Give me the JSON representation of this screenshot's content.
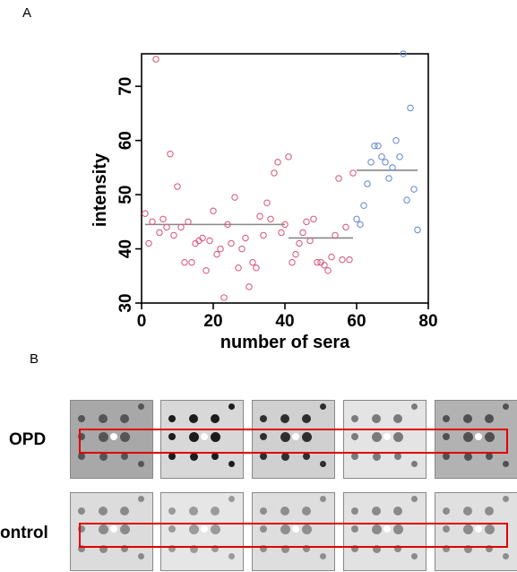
{
  "panel_a_label": "A",
  "panel_b_label": "B",
  "chart_data": {
    "type": "scatter",
    "xlabel": "number of sera",
    "ylabel": "intensity",
    "xlim": [
      0,
      80
    ],
    "ylim": [
      30,
      76
    ],
    "xticks": [
      0,
      20,
      40,
      60,
      80
    ],
    "yticks": [
      30,
      40,
      50,
      60,
      70
    ],
    "grid": false,
    "colors": {
      "pink": "#d9607f",
      "blue": "#6f8fd6",
      "mean_line": "#888888"
    },
    "series": [
      {
        "color": "pink",
        "x": [
          1,
          2,
          3,
          4,
          5,
          6,
          7,
          8,
          9,
          10,
          11,
          12,
          13,
          14,
          15,
          16,
          17,
          18,
          19,
          20,
          21,
          22,
          23,
          24,
          25,
          26,
          27,
          28,
          29,
          30,
          31,
          32,
          33,
          34,
          35,
          36,
          37,
          38,
          39,
          40
        ],
        "y": [
          46.5,
          41,
          45,
          75,
          43,
          45.5,
          44,
          57.5,
          42.5,
          51.5,
          44,
          37.5,
          45,
          37.5,
          41,
          41.5,
          42,
          36,
          41.5,
          47,
          39,
          40,
          31,
          44.5,
          41,
          49.5,
          36.5,
          40,
          42,
          33,
          37.5,
          36.5,
          46,
          42.5,
          48.5,
          45.5,
          54,
          56,
          43,
          44.5
        ]
      },
      {
        "color": "pink",
        "x": [
          41,
          42,
          43,
          44,
          45,
          46,
          47,
          48,
          49,
          50,
          51,
          52,
          53,
          54,
          55,
          56,
          57,
          58,
          59
        ],
        "y": [
          57,
          37.5,
          39,
          41,
          43,
          45,
          41.5,
          45.5,
          37.5,
          37.5,
          37,
          36,
          38.5,
          42.5,
          53,
          38,
          44,
          38,
          54
        ]
      },
      {
        "color": "blue",
        "x": [
          60,
          61,
          62,
          63,
          64,
          65,
          66,
          67,
          68,
          69,
          70,
          71,
          72,
          73,
          74,
          75,
          76,
          77
        ],
        "y": [
          45.5,
          44.5,
          48,
          52,
          56,
          59,
          59,
          57,
          56,
          53,
          55,
          60,
          57,
          76,
          49,
          66,
          51,
          43.5
        ]
      }
    ],
    "mean_lines": [
      {
        "x_start": 1,
        "x_end": 40,
        "y": 44.5
      },
      {
        "x_start": 41,
        "x_end": 59,
        "y": 42
      },
      {
        "x_start": 60,
        "x_end": 77,
        "y": 54.5
      }
    ]
  },
  "blot_rows": [
    {
      "label": "OPD"
    },
    {
      "label": "ontrol"
    }
  ],
  "highlight_color": "#e00000"
}
